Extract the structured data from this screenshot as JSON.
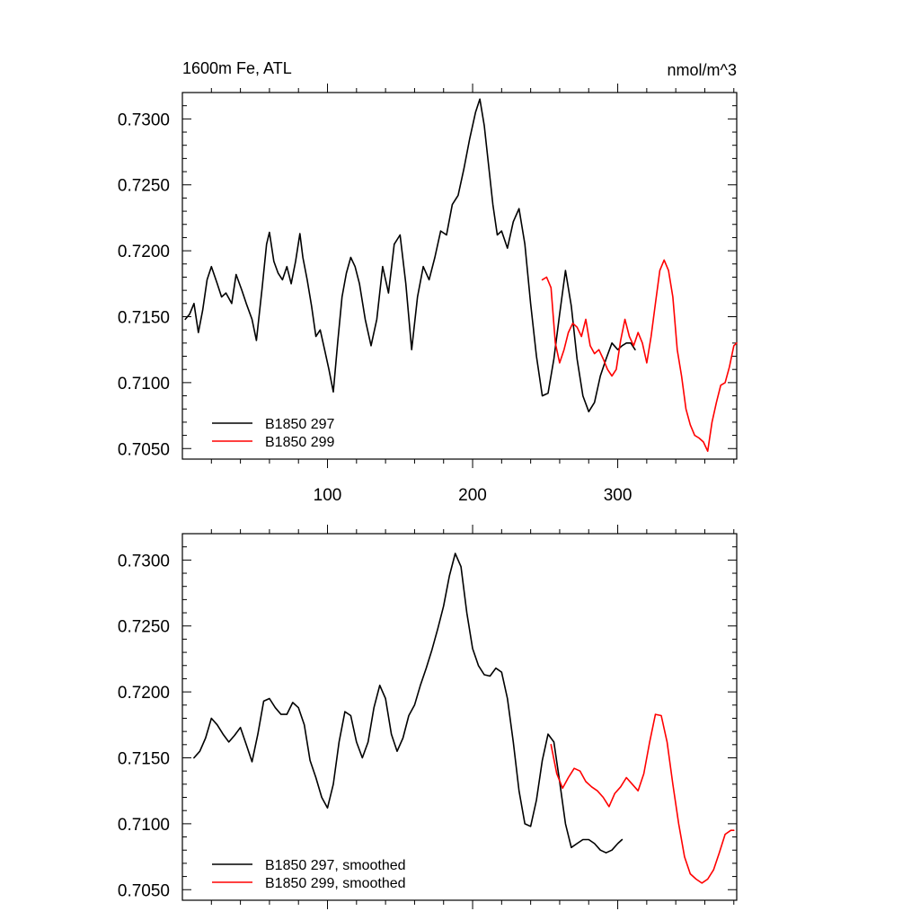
{
  "colors": {
    "black": "#000000",
    "red": "#ff0000"
  },
  "chart_data": [
    {
      "type": "line",
      "title": "1600m Fe, ATL",
      "units": "nmol/m^3",
      "xlim": [
        0,
        382
      ],
      "ylim": [
        0.7042,
        0.732
      ],
      "x_ticks": [
        100,
        200,
        300
      ],
      "y_ticks": [
        "0.7050",
        "0.7100",
        "0.7150",
        "0.7200",
        "0.7250",
        "0.7300"
      ],
      "legend": "bottom-left",
      "series": [
        {
          "name": "B1850 297",
          "color": "#000000",
          "x": [
            2,
            5,
            8,
            11,
            14,
            17,
            20,
            24,
            27,
            30,
            34,
            37,
            41,
            44,
            48,
            51,
            55,
            58,
            60,
            63,
            66,
            69,
            72,
            75,
            78,
            81,
            83,
            86,
            89,
            92,
            95,
            98,
            101,
            104,
            107,
            110,
            113,
            116,
            119,
            122,
            126,
            130,
            134,
            138,
            142,
            146,
            150,
            154,
            158,
            162,
            166,
            170,
            174,
            178,
            182,
            186,
            190,
            194,
            198,
            202,
            205,
            208,
            211,
            214,
            217,
            220,
            224,
            228,
            232,
            236,
            240,
            244,
            248,
            252,
            256,
            260,
            264,
            268,
            272,
            276,
            280,
            284,
            288,
            292,
            296,
            300,
            303,
            306,
            309,
            312
          ],
          "y": [
            0.7148,
            0.7152,
            0.716,
            0.7138,
            0.7155,
            0.7178,
            0.7188,
            0.7175,
            0.7165,
            0.7168,
            0.716,
            0.7182,
            0.717,
            0.716,
            0.7148,
            0.7132,
            0.7172,
            0.7205,
            0.7214,
            0.7192,
            0.7183,
            0.7178,
            0.7188,
            0.7175,
            0.7192,
            0.7213,
            0.7195,
            0.7178,
            0.7158,
            0.7135,
            0.714,
            0.7125,
            0.711,
            0.7093,
            0.713,
            0.7165,
            0.7183,
            0.7195,
            0.7188,
            0.7175,
            0.7148,
            0.7128,
            0.7148,
            0.7188,
            0.7168,
            0.7205,
            0.7212,
            0.7175,
            0.7125,
            0.7165,
            0.7188,
            0.7178,
            0.7195,
            0.7215,
            0.7212,
            0.7235,
            0.7242,
            0.7262,
            0.7285,
            0.7305,
            0.7315,
            0.7295,
            0.7265,
            0.7235,
            0.7212,
            0.7215,
            0.7202,
            0.7222,
            0.7232,
            0.7205,
            0.716,
            0.712,
            0.709,
            0.7092,
            0.7118,
            0.7152,
            0.7185,
            0.7158,
            0.7118,
            0.709,
            0.7078,
            0.7085,
            0.7105,
            0.7118,
            0.713,
            0.7125,
            0.7128,
            0.713,
            0.713,
            0.7125
          ]
        },
        {
          "name": "B1850 299",
          "color": "#ff0000",
          "x": [
            248,
            251,
            254,
            257,
            260,
            263,
            266,
            269,
            272,
            275,
            278,
            281,
            284,
            287,
            290,
            293,
            296,
            299,
            302,
            305,
            308,
            311,
            314,
            317,
            320,
            323,
            326,
            329,
            332,
            335,
            338,
            341,
            344,
            347,
            350,
            353,
            356,
            359,
            362,
            365,
            368,
            371,
            374,
            377,
            380,
            382
          ],
          "y": [
            0.7178,
            0.718,
            0.7172,
            0.713,
            0.7115,
            0.7125,
            0.7138,
            0.7145,
            0.7142,
            0.7135,
            0.7148,
            0.7128,
            0.7122,
            0.7125,
            0.7118,
            0.711,
            0.7105,
            0.711,
            0.7132,
            0.7148,
            0.7135,
            0.7128,
            0.7138,
            0.713,
            0.7115,
            0.7135,
            0.716,
            0.7185,
            0.7193,
            0.7185,
            0.7165,
            0.7125,
            0.7105,
            0.708,
            0.7068,
            0.706,
            0.7058,
            0.7055,
            0.7048,
            0.707,
            0.7085,
            0.7098,
            0.71,
            0.7112,
            0.7128,
            0.713
          ]
        }
      ]
    },
    {
      "type": "line",
      "xlim": [
        0,
        382
      ],
      "ylim": [
        0.7042,
        0.732
      ],
      "y_ticks": [
        "0.7050",
        "0.7100",
        "0.7150",
        "0.7200",
        "0.7250",
        "0.7300"
      ],
      "legend": "bottom-left",
      "series": [
        {
          "name": "B1850 297, smoothed",
          "color": "#000000",
          "x": [
            8,
            12,
            16,
            20,
            24,
            28,
            32,
            36,
            40,
            44,
            48,
            52,
            56,
            60,
            64,
            68,
            72,
            76,
            80,
            84,
            88,
            92,
            96,
            100,
            104,
            108,
            112,
            116,
            120,
            124,
            128,
            132,
            136,
            140,
            144,
            148,
            152,
            156,
            160,
            164,
            168,
            172,
            176,
            180,
            184,
            188,
            192,
            196,
            200,
            204,
            208,
            212,
            216,
            220,
            224,
            228,
            232,
            236,
            240,
            244,
            248,
            252,
            256,
            260,
            264,
            268,
            272,
            276,
            280,
            284,
            288,
            292,
            296,
            300,
            303
          ],
          "y": [
            0.715,
            0.7155,
            0.7165,
            0.718,
            0.7175,
            0.7168,
            0.7162,
            0.7167,
            0.7173,
            0.716,
            0.7147,
            0.7168,
            0.7193,
            0.7195,
            0.7188,
            0.7183,
            0.7183,
            0.7192,
            0.7188,
            0.7175,
            0.7148,
            0.7135,
            0.712,
            0.7112,
            0.713,
            0.7162,
            0.7185,
            0.7182,
            0.7162,
            0.715,
            0.7162,
            0.7188,
            0.7205,
            0.7195,
            0.7168,
            0.7155,
            0.7165,
            0.7182,
            0.719,
            0.7205,
            0.7218,
            0.7232,
            0.7248,
            0.7265,
            0.7288,
            0.7305,
            0.7295,
            0.726,
            0.7233,
            0.722,
            0.7213,
            0.7212,
            0.7218,
            0.7215,
            0.7195,
            0.7162,
            0.7125,
            0.71,
            0.7098,
            0.7118,
            0.7148,
            0.7168,
            0.7162,
            0.7132,
            0.71,
            0.7082,
            0.7085,
            0.7088,
            0.7088,
            0.7085,
            0.708,
            0.7078,
            0.708,
            0.7085,
            0.7088
          ]
        },
        {
          "name": "B1850 299, smoothed",
          "color": "#ff0000",
          "x": [
            254,
            258,
            262,
            266,
            270,
            274,
            278,
            282,
            286,
            290,
            294,
            298,
            302,
            306,
            310,
            314,
            318,
            322,
            326,
            330,
            334,
            338,
            342,
            346,
            350,
            354,
            358,
            362,
            366,
            370,
            374,
            378,
            380
          ],
          "y": [
            0.716,
            0.7138,
            0.7127,
            0.7135,
            0.7142,
            0.714,
            0.7132,
            0.7128,
            0.7125,
            0.712,
            0.7113,
            0.7123,
            0.7128,
            0.7135,
            0.713,
            0.7125,
            0.7138,
            0.7162,
            0.7183,
            0.7182,
            0.7162,
            0.713,
            0.71,
            0.7075,
            0.7062,
            0.7058,
            0.7055,
            0.7058,
            0.7065,
            0.7078,
            0.7092,
            0.7095,
            0.7095
          ]
        }
      ]
    }
  ]
}
